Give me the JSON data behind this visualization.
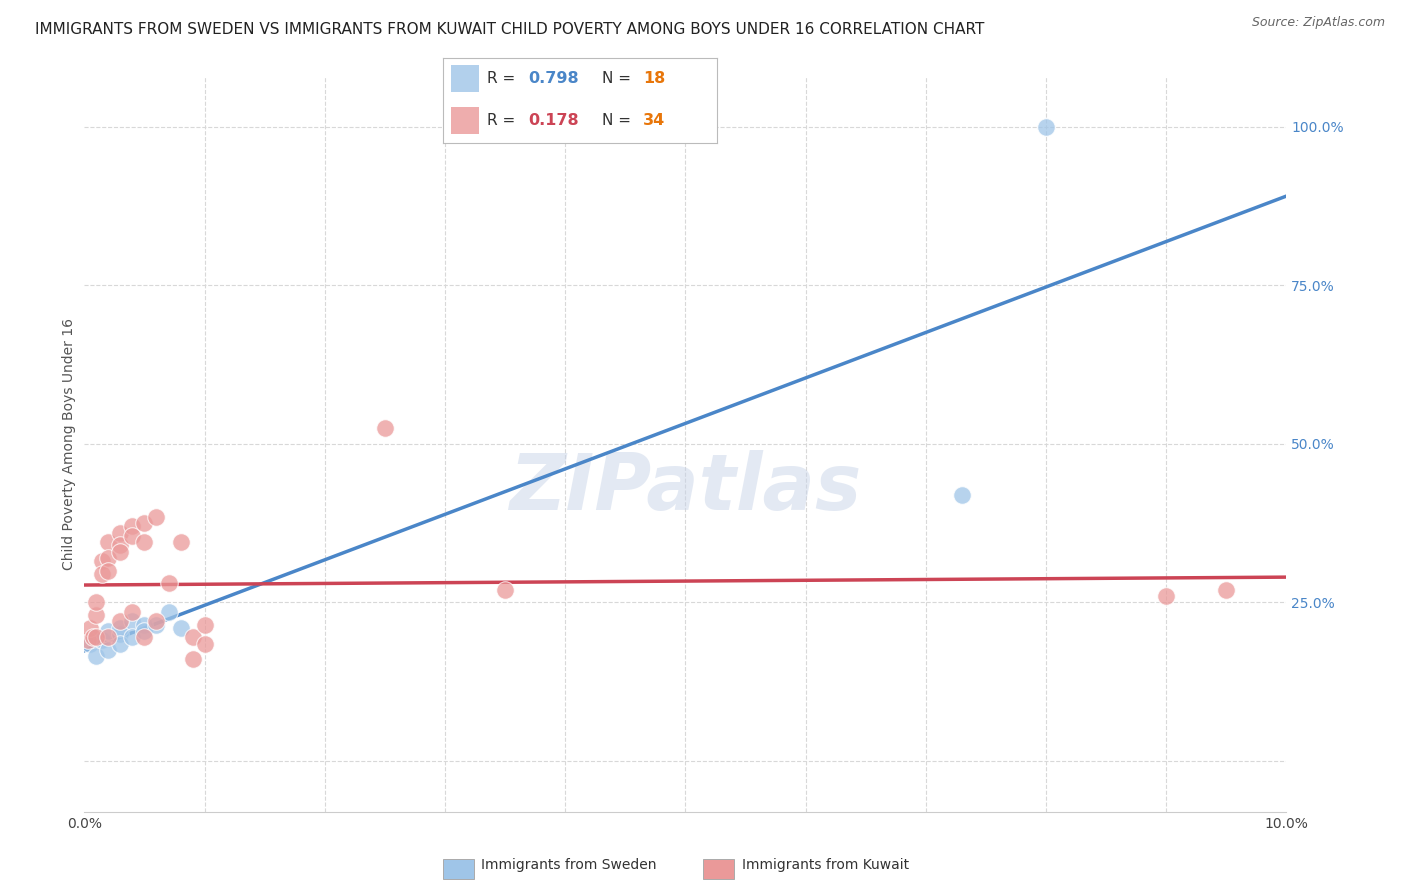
{
  "title": "IMMIGRANTS FROM SWEDEN VS IMMIGRANTS FROM KUWAIT CHILD POVERTY AMONG BOYS UNDER 16 CORRELATION CHART",
  "source": "Source: ZipAtlas.com",
  "ylabel": "Child Poverty Among Boys Under 16",
  "watermark": "ZIPatlas",
  "xlim": [
    0.0,
    0.1
  ],
  "ylim": [
    -0.08,
    1.08
  ],
  "yticks_right": [
    0.25,
    0.5,
    0.75,
    1.0
  ],
  "ytick_labels_right": [
    "25.0%",
    "50.0%",
    "75.0%",
    "100.0%"
  ],
  "sweden_color": "#9fc5e8",
  "kuwait_color": "#ea9999",
  "sweden_line_color": "#4a86c8",
  "kuwait_line_color": "#cc4455",
  "dash_color": "#b0b8c8",
  "R_sweden": 0.798,
  "N_sweden": 18,
  "R_kuwait": 0.178,
  "N_kuwait": 34,
  "sweden_x": [
    0.0005,
    0.001,
    0.001,
    0.0015,
    0.002,
    0.002,
    0.003,
    0.003,
    0.003,
    0.004,
    0.004,
    0.005,
    0.005,
    0.006,
    0.007,
    0.008,
    0.073,
    0.08
  ],
  "sweden_y": [
    0.185,
    0.165,
    0.195,
    0.19,
    0.175,
    0.205,
    0.2,
    0.21,
    0.185,
    0.22,
    0.195,
    0.215,
    0.205,
    0.215,
    0.235,
    0.21,
    0.42,
    1.0
  ],
  "kuwait_x": [
    0.0003,
    0.0005,
    0.0007,
    0.001,
    0.001,
    0.001,
    0.0015,
    0.0015,
    0.002,
    0.002,
    0.002,
    0.002,
    0.003,
    0.003,
    0.003,
    0.003,
    0.004,
    0.004,
    0.004,
    0.005,
    0.005,
    0.005,
    0.006,
    0.006,
    0.007,
    0.008,
    0.009,
    0.009,
    0.01,
    0.01,
    0.025,
    0.035,
    0.09,
    0.095
  ],
  "kuwait_y": [
    0.19,
    0.21,
    0.195,
    0.23,
    0.25,
    0.195,
    0.315,
    0.295,
    0.345,
    0.32,
    0.3,
    0.195,
    0.36,
    0.34,
    0.33,
    0.22,
    0.37,
    0.355,
    0.235,
    0.375,
    0.345,
    0.195,
    0.385,
    0.22,
    0.28,
    0.345,
    0.16,
    0.195,
    0.215,
    0.185,
    0.525,
    0.27,
    0.26,
    0.27
  ],
  "background_color": "#ffffff",
  "grid_color": "#d8d8d8",
  "title_fontsize": 11,
  "axis_label_fontsize": 10,
  "tick_fontsize": 10
}
